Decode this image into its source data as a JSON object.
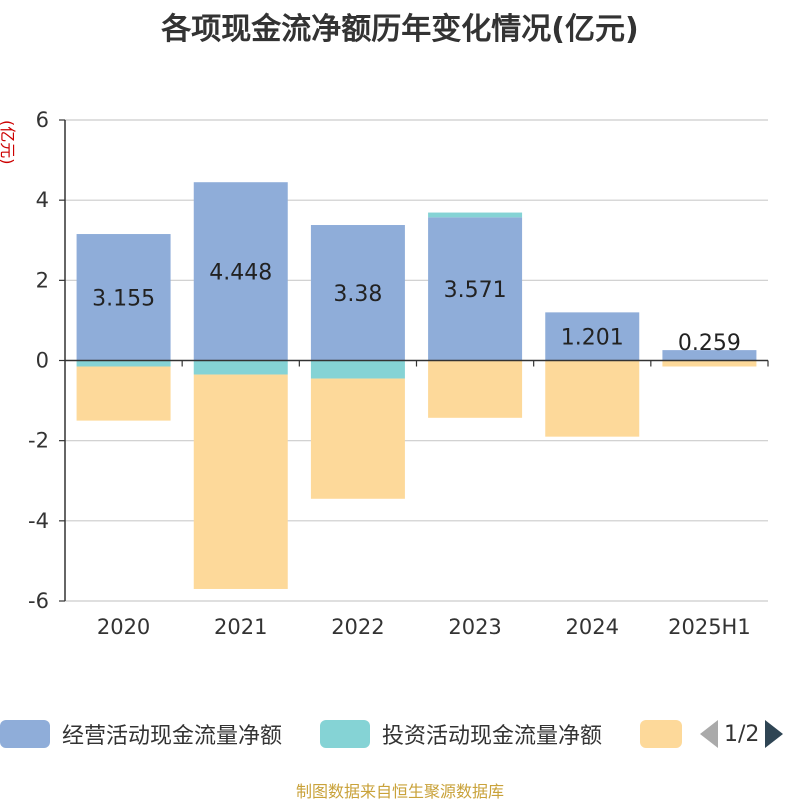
{
  "title": "各项现金流净额历年变化情况(亿元)",
  "source": "制图数据来自恒生聚源数据库",
  "colors": {
    "operating": "#8fadd9",
    "investing": "#85d3d5",
    "financing": "#fdd99a",
    "unit_label": "#cc0000"
  },
  "legend": {
    "pager_text": "1/2",
    "items": [
      "经营活动现金流量净额",
      "投资活动现金流量净额",
      ""
    ]
  },
  "chart_data": {
    "type": "bar",
    "stacked": true,
    "title": "各项现金流净额历年变化情况(亿元)",
    "ylabel": "(亿元)",
    "categories": [
      "2020",
      "2021",
      "2022",
      "2023",
      "2024",
      "2025H1"
    ],
    "ylim": [
      -6,
      6
    ],
    "yticks": [
      -6,
      -4,
      -2,
      0,
      2,
      4,
      6
    ],
    "grid": true,
    "legend_position": "bottom",
    "series": [
      {
        "name": "经营活动现金流量净额",
        "values": [
          3.155,
          4.448,
          3.38,
          3.571,
          1.201,
          0.259
        ],
        "labels": [
          "3.155",
          "4.448",
          "3.38",
          "3.571",
          "1.201",
          "0.259"
        ]
      },
      {
        "name": "投资活动现金流量净额",
        "values": [
          -0.15,
          -0.35,
          -0.45,
          0.12,
          0.0,
          0.0
        ]
      },
      {
        "name": "",
        "values": [
          -1.35,
          -5.35,
          -3.0,
          -1.43,
          -1.9,
          -0.15
        ]
      }
    ]
  }
}
